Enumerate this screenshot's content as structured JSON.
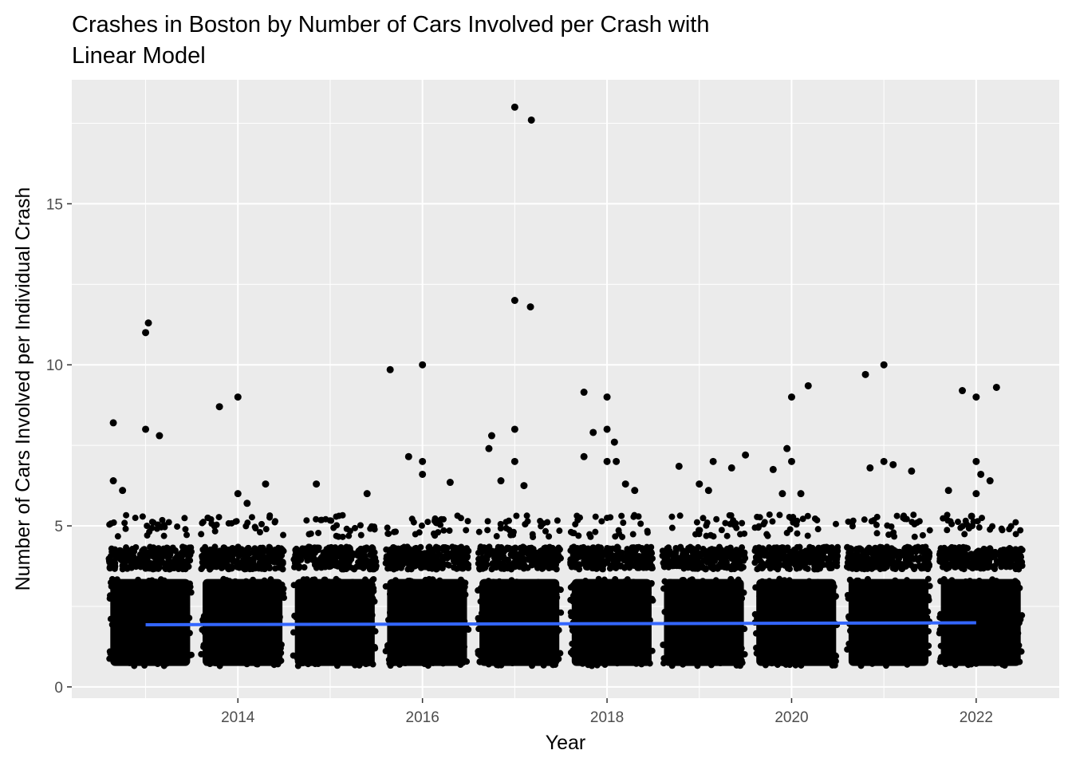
{
  "chart_data": {
    "type": "scatter",
    "title_lines": [
      "Crashes in Boston by Number of Cars Involved per Crash with",
      "Linear Model"
    ],
    "xlabel": "Year",
    "ylabel": "Number of Cars Involved per Individual Crash",
    "xlim": [
      2012.2,
      2022.9
    ],
    "ylim": [
      -0.35,
      18.85
    ],
    "x_ticks": [
      2014,
      2016,
      2018,
      2020,
      2022
    ],
    "x_tick_labels": [
      "2014",
      "2016",
      "2018",
      "2020",
      "2022"
    ],
    "y_ticks": [
      0,
      5,
      10,
      15
    ],
    "y_tick_labels": [
      "0",
      "5",
      "10",
      "15"
    ],
    "grid": true,
    "background": "#ebebeb",
    "point_color": "#000000",
    "jitter": true,
    "year_clusters": [
      {
        "center": 2013,
        "x_range": [
          2012.6,
          2013.5
        ]
      },
      {
        "center": 2014,
        "x_range": [
          2013.6,
          2014.5
        ]
      },
      {
        "center": 2015,
        "x_range": [
          2014.6,
          2015.5
        ]
      },
      {
        "center": 2016,
        "x_range": [
          2015.6,
          2016.5
        ]
      },
      {
        "center": 2017,
        "x_range": [
          2016.6,
          2017.5
        ]
      },
      {
        "center": 2018,
        "x_range": [
          2017.6,
          2018.5
        ]
      },
      {
        "center": 2019,
        "x_range": [
          2018.6,
          2019.5
        ]
      },
      {
        "center": 2020,
        "x_range": [
          2019.6,
          2020.5
        ]
      },
      {
        "center": 2021,
        "x_range": [
          2020.6,
          2021.5
        ]
      },
      {
        "center": 2022,
        "x_range": [
          2021.6,
          2022.5
        ]
      }
    ],
    "outliers": [
      {
        "x": 2012.65,
        "y": 8.2
      },
      {
        "x": 2013.0,
        "y": 11.0
      },
      {
        "x": 2013.03,
        "y": 11.3
      },
      {
        "x": 2013.0,
        "y": 8.0
      },
      {
        "x": 2013.15,
        "y": 7.8
      },
      {
        "x": 2012.65,
        "y": 6.4
      },
      {
        "x": 2012.75,
        "y": 6.1
      },
      {
        "x": 2013.8,
        "y": 8.7
      },
      {
        "x": 2014.0,
        "y": 9.0
      },
      {
        "x": 2014.0,
        "y": 6.0
      },
      {
        "x": 2014.3,
        "y": 6.3
      },
      {
        "x": 2014.1,
        "y": 5.7
      },
      {
        "x": 2014.85,
        "y": 6.3
      },
      {
        "x": 2015.4,
        "y": 6.0
      },
      {
        "x": 2015.65,
        "y": 9.85
      },
      {
        "x": 2016.0,
        "y": 10.0
      },
      {
        "x": 2015.85,
        "y": 7.15
      },
      {
        "x": 2016.0,
        "y": 7.0
      },
      {
        "x": 2016.0,
        "y": 6.6
      },
      {
        "x": 2016.3,
        "y": 6.35
      },
      {
        "x": 2017.0,
        "y": 18.0
      },
      {
        "x": 2017.18,
        "y": 17.6
      },
      {
        "x": 2017.0,
        "y": 12.0
      },
      {
        "x": 2017.17,
        "y": 11.8
      },
      {
        "x": 2017.0,
        "y": 8.0
      },
      {
        "x": 2016.75,
        "y": 7.8
      },
      {
        "x": 2016.72,
        "y": 7.4
      },
      {
        "x": 2017.0,
        "y": 7.0
      },
      {
        "x": 2016.85,
        "y": 6.4
      },
      {
        "x": 2017.1,
        "y": 6.25
      },
      {
        "x": 2017.75,
        "y": 9.15
      },
      {
        "x": 2018.0,
        "y": 9.0
      },
      {
        "x": 2018.0,
        "y": 8.0
      },
      {
        "x": 2017.85,
        "y": 7.9
      },
      {
        "x": 2018.08,
        "y": 7.6
      },
      {
        "x": 2017.75,
        "y": 7.15
      },
      {
        "x": 2018.0,
        "y": 7.0
      },
      {
        "x": 2018.1,
        "y": 7.0
      },
      {
        "x": 2018.2,
        "y": 6.3
      },
      {
        "x": 2018.3,
        "y": 6.1
      },
      {
        "x": 2018.78,
        "y": 6.85
      },
      {
        "x": 2019.15,
        "y": 7.0
      },
      {
        "x": 2019.35,
        "y": 6.8
      },
      {
        "x": 2019.5,
        "y": 7.2
      },
      {
        "x": 2019.0,
        "y": 6.3
      },
      {
        "x": 2019.1,
        "y": 6.1
      },
      {
        "x": 2020.0,
        "y": 9.0
      },
      {
        "x": 2020.18,
        "y": 9.35
      },
      {
        "x": 2019.8,
        "y": 6.75
      },
      {
        "x": 2019.95,
        "y": 7.4
      },
      {
        "x": 2020.0,
        "y": 7.0
      },
      {
        "x": 2019.9,
        "y": 6.0
      },
      {
        "x": 2020.1,
        "y": 6.0
      },
      {
        "x": 2020.8,
        "y": 9.7
      },
      {
        "x": 2021.0,
        "y": 10.0
      },
      {
        "x": 2021.0,
        "y": 7.0
      },
      {
        "x": 2020.85,
        "y": 6.8
      },
      {
        "x": 2021.1,
        "y": 6.9
      },
      {
        "x": 2021.3,
        "y": 6.7
      },
      {
        "x": 2021.85,
        "y": 9.2
      },
      {
        "x": 2022.0,
        "y": 9.0
      },
      {
        "x": 2022.22,
        "y": 9.3
      },
      {
        "x": 2022.0,
        "y": 7.0
      },
      {
        "x": 2022.05,
        "y": 6.6
      },
      {
        "x": 2022.15,
        "y": 6.4
      },
      {
        "x": 2022.0,
        "y": 6.0
      },
      {
        "x": 2021.7,
        "y": 6.1
      },
      {
        "x": 2021.95,
        "y": 5.3
      }
    ],
    "trend_line": {
      "label": "Linear Model",
      "color": "#3366ff",
      "x": [
        2013,
        2022
      ],
      "y": [
        1.93,
        1.99
      ]
    }
  }
}
